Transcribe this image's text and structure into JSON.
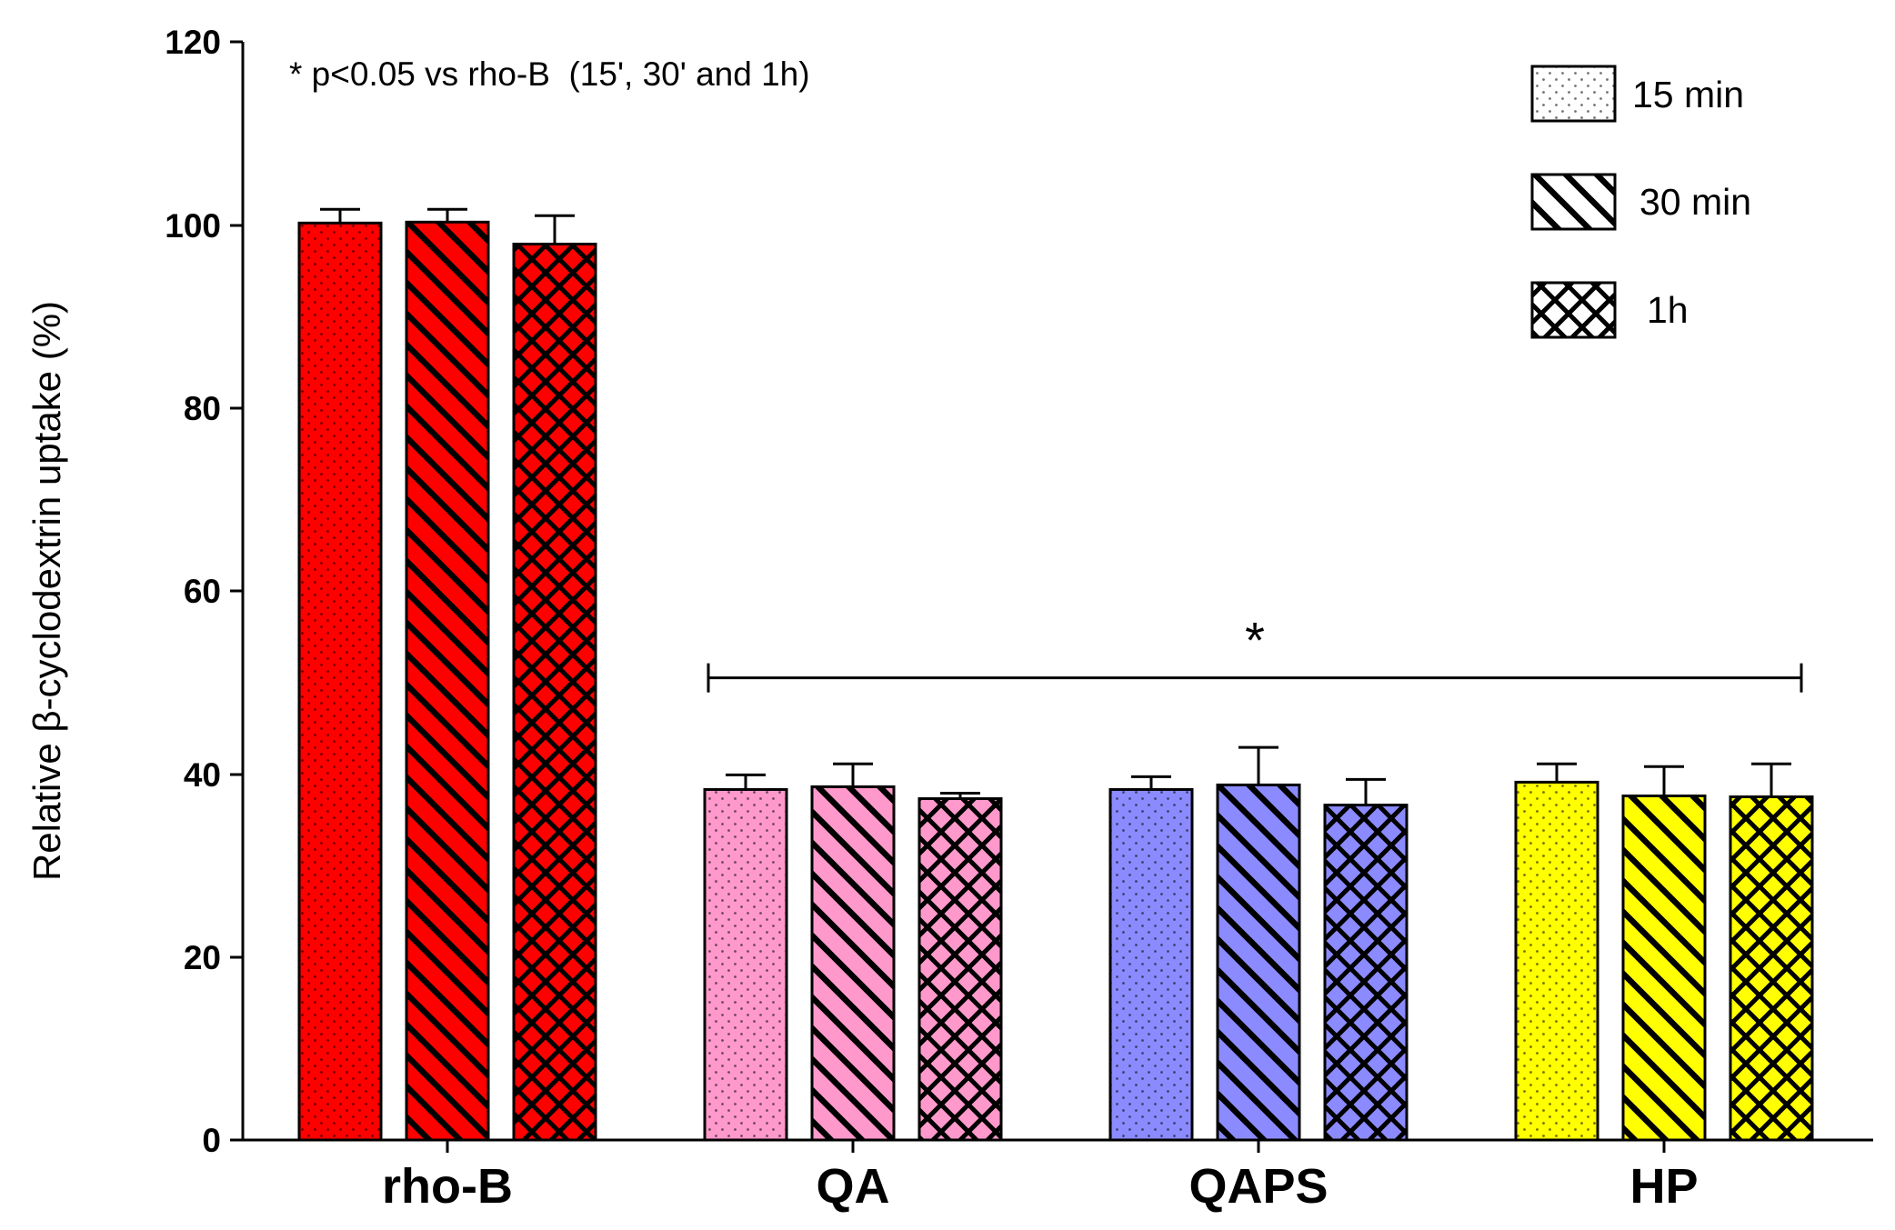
{
  "chart_data": {
    "type": "bar",
    "title": "",
    "xlabel": "",
    "ylabel": "Relative β-cyclodextrin uptake (%)",
    "ylim": [
      0,
      120
    ],
    "yticks": [
      "0",
      "20",
      "40",
      "60",
      "80",
      "100",
      "120"
    ],
    "categories": [
      "rho-B",
      "QA",
      "QAPS",
      "HP"
    ],
    "category_colors": [
      "#ff0000",
      "#ff99cc",
      "#8b8bff",
      "#ffff00"
    ],
    "series": [
      {
        "name": "15 min",
        "pattern": "dots",
        "values": [
          100.2,
          38.3,
          38.3,
          39.1
        ],
        "errors": [
          1.5,
          1.6,
          1.4,
          2.0
        ]
      },
      {
        "name": "30 min",
        "pattern": "diagonal",
        "values": [
          100.3,
          38.6,
          38.8,
          37.6
        ],
        "errors": [
          1.4,
          2.5,
          4.1,
          3.2
        ]
      },
      {
        "name": "1h",
        "pattern": "crosshatch",
        "values": [
          97.9,
          37.3,
          36.6,
          37.5
        ],
        "errors": [
          3.1,
          0.6,
          2.8,
          3.6
        ]
      }
    ],
    "annotation": "* p<0.05 vs rho-B  (15', 30' and 1h)",
    "significance": {
      "label": "*",
      "from_category": "QA",
      "to_category": "HP",
      "level": 50.5
    },
    "legend": {
      "position": "top-right",
      "entries": [
        "15 min",
        "30 min",
        "1h"
      ]
    }
  }
}
